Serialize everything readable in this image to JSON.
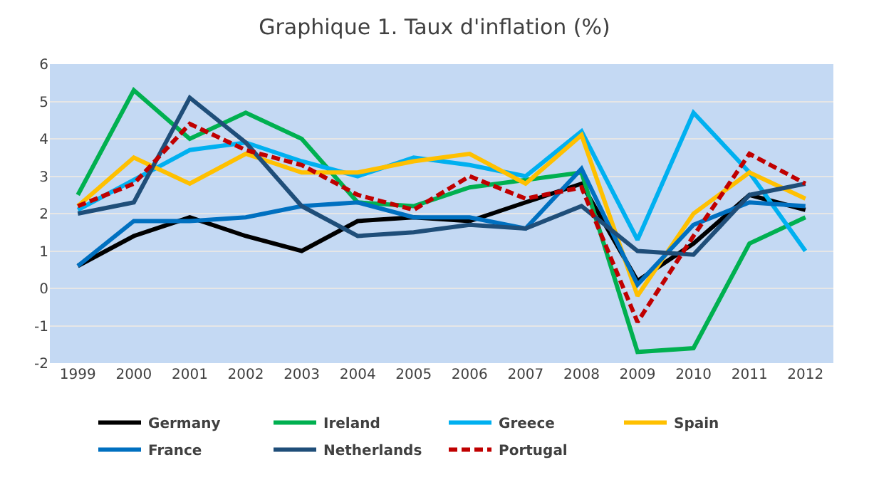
{
  "chart_data": {
    "type": "line",
    "title": "Graphique 1. Taux d'inflation (%)",
    "categories": [
      "1999",
      "2000",
      "2001",
      "2002",
      "2003",
      "2004",
      "2005",
      "2006",
      "2007",
      "2008",
      "2009",
      "2010",
      "2011",
      "2012"
    ],
    "ylim": [
      -2,
      6
    ],
    "yticks": [
      -2,
      -1,
      0,
      1,
      2,
      3,
      4,
      5,
      6
    ],
    "grid": "y",
    "legend": "bottom",
    "marker": "none",
    "series": [
      {
        "name": "Germany",
        "color": "#000000",
        "values": [
          0.6,
          1.4,
          1.9,
          1.4,
          1.0,
          1.8,
          1.9,
          1.8,
          2.3,
          2.8,
          0.2,
          1.2,
          2.5,
          2.1
        ]
      },
      {
        "name": "Ireland",
        "color": "#00b050",
        "values": [
          2.5,
          5.3,
          4.0,
          4.7,
          4.0,
          2.3,
          2.2,
          2.7,
          2.9,
          3.1,
          -1.7,
          -1.6,
          1.2,
          1.9
        ]
      },
      {
        "name": "Greece",
        "color": "#00b0f0",
        "values": [
          2.1,
          2.9,
          3.7,
          3.9,
          3.4,
          3.0,
          3.5,
          3.3,
          3.0,
          4.2,
          1.3,
          4.7,
          3.1,
          1.0
        ]
      },
      {
        "name": "Spain",
        "color": "#ffc000",
        "values": [
          2.2,
          3.5,
          2.8,
          3.6,
          3.1,
          3.1,
          3.4,
          3.6,
          2.8,
          4.1,
          -0.2,
          2.0,
          3.1,
          2.4
        ]
      },
      {
        "name": "France",
        "color": "#0070c0",
        "values": [
          0.6,
          1.8,
          1.8,
          1.9,
          2.2,
          2.3,
          1.9,
          1.9,
          1.6,
          3.2,
          0.1,
          1.7,
          2.3,
          2.2
        ]
      },
      {
        "name": "Netherlands",
        "color": "#1f4e79",
        "values": [
          2.0,
          2.3,
          5.1,
          3.9,
          2.2,
          1.4,
          1.5,
          1.7,
          1.6,
          2.2,
          1.0,
          0.9,
          2.5,
          2.8
        ]
      },
      {
        "name": "Portugal",
        "color": "#c00000",
        "line_style": "dashed",
        "values": [
          2.2,
          2.8,
          4.4,
          3.7,
          3.3,
          2.5,
          2.1,
          3.0,
          2.4,
          2.7,
          -0.9,
          1.4,
          3.6,
          2.8
        ]
      }
    ]
  }
}
